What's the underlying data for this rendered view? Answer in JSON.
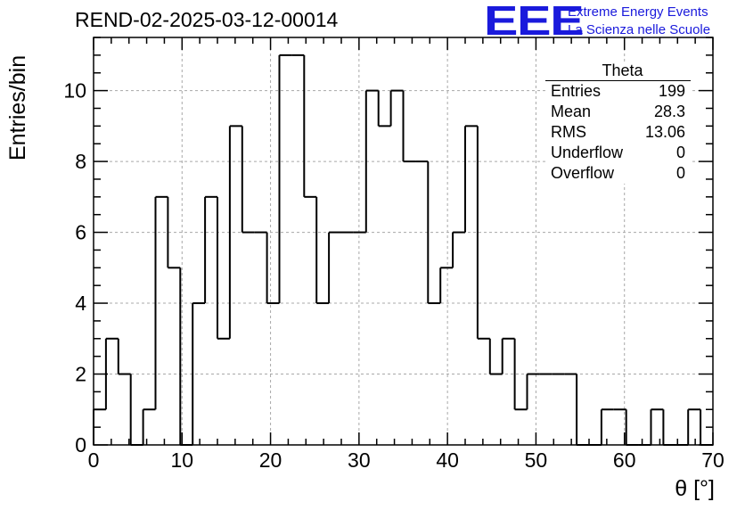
{
  "title": "REND-02-2025-03-12-00014",
  "logo": {
    "mark": "EEE",
    "line1": "Extreme Energy Events",
    "line2": "La Scienza nelle Scuole",
    "color": "#1a1adc"
  },
  "stats": {
    "name": "Theta",
    "rows": [
      {
        "label": "Entries",
        "value": "199"
      },
      {
        "label": "Mean",
        "value": "28.3"
      },
      {
        "label": "RMS",
        "value": "13.06"
      },
      {
        "label": "Underflow",
        "value": "0"
      },
      {
        "label": "Overflow",
        "value": "0"
      }
    ]
  },
  "chart_data": {
    "type": "bar",
    "histogram": true,
    "xlabel": "θ [°]",
    "ylabel": "Entries/bin",
    "xlim": [
      0,
      70
    ],
    "ylim": [
      0,
      11.5
    ],
    "grid": true,
    "x_ticks": [
      0,
      10,
      20,
      30,
      40,
      50,
      60,
      70
    ],
    "y_ticks": [
      0,
      2,
      4,
      6,
      8,
      10
    ],
    "bin_edges": [
      0,
      1.4,
      2.8,
      4.2,
      5.6,
      7,
      8.4,
      9.8,
      11.2,
      12.6,
      14,
      15.4,
      16.8,
      18.2,
      19.6,
      21,
      22.4,
      23.8,
      25.2,
      26.6,
      28,
      29.4,
      30.8,
      32.2,
      33.6,
      35,
      36.4,
      37.8,
      39.2,
      40.6,
      42,
      43.4,
      44.8,
      46.2,
      47.6,
      49,
      50.4,
      51.8,
      53.2,
      54.6,
      56,
      57.4,
      58.8,
      60.2,
      61.6,
      63,
      64.4,
      65.8,
      67.2,
      68.6,
      70
    ],
    "values": [
      1,
      3,
      2,
      0,
      1,
      7,
      5,
      0,
      4,
      7,
      3,
      9,
      6,
      6,
      4,
      11,
      11,
      7,
      4,
      6,
      6,
      6,
      10,
      9,
      10,
      8,
      8,
      4,
      5,
      6,
      9,
      3,
      2,
      3,
      1,
      2,
      2,
      2,
      2,
      0,
      0,
      1,
      1,
      0,
      0,
      1,
      0,
      0,
      1,
      0
    ],
    "line_color": "#000000"
  }
}
